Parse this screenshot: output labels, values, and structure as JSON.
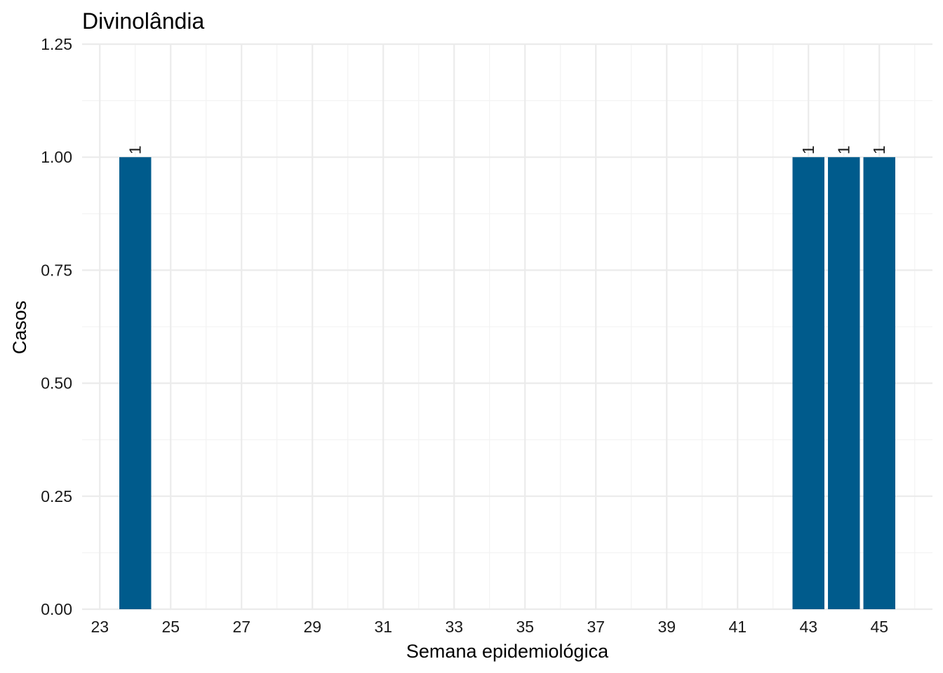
{
  "chart_data": {
    "type": "bar",
    "title": "Divinolândia",
    "xlabel": "Semana epidemiológica",
    "ylabel": "Casos",
    "x": [
      24,
      43,
      44,
      45
    ],
    "values": [
      1,
      1,
      1,
      1
    ],
    "value_labels": [
      "1",
      "1",
      "1",
      "1"
    ],
    "xlim": [
      22.5,
      46.5
    ],
    "ylim": [
      0,
      1.25
    ],
    "x_ticks": [
      23,
      25,
      27,
      29,
      31,
      33,
      35,
      37,
      39,
      41,
      43,
      45
    ],
    "x_tick_labels": [
      "23",
      "25",
      "27",
      "29",
      "31",
      "33",
      "35",
      "37",
      "39",
      "41",
      "43",
      "45"
    ],
    "y_ticks": [
      0,
      0.25,
      0.5,
      0.75,
      1,
      1.25
    ],
    "y_tick_labels": [
      "0.00",
      "0.25",
      "0.50",
      "0.75",
      "1.00",
      "1.25"
    ],
    "bar_color": "#005b8c",
    "grid": true,
    "legend": "none"
  }
}
